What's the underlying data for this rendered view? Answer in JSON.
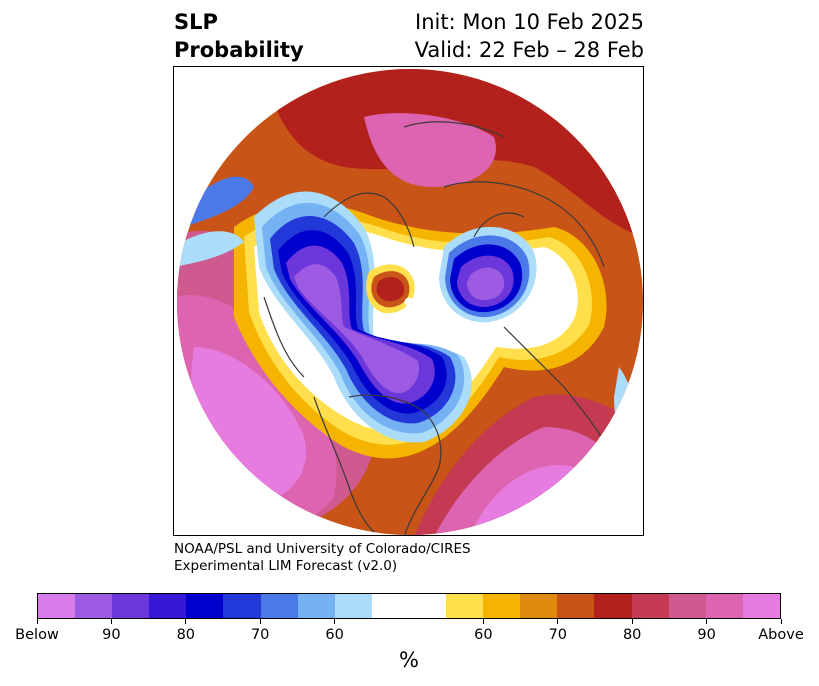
{
  "title": {
    "left_line1": "SLP",
    "left_line2": "Probability",
    "right_line1": "Init: Mon 10 Feb 2025",
    "right_line2": "Valid: 22 Feb – 28 Feb"
  },
  "credit": {
    "line1": "NOAA/PSL and University of Colorado/CIRES",
    "line2": "Experimental LIM Forecast (v2.0)"
  },
  "colorbar": {
    "colors": [
      "#d77ce8",
      "#9c5be2",
      "#6b36da",
      "#3519d6",
      "#0000cc",
      "#2338d9",
      "#4c79e8",
      "#74b2f4",
      "#abdcfa",
      "#ffffff",
      "#ffffff",
      "#ffe04c",
      "#f5b400",
      "#e08a0e",
      "#c95418",
      "#b3211d",
      "#c33a52",
      "#cf5a90",
      "#dd64b0",
      "#e67ce0"
    ],
    "tick_labels": [
      "Below",
      "90",
      "80",
      "70",
      "60",
      "60",
      "70",
      "80",
      "90",
      "Above"
    ],
    "unit": "%"
  },
  "map": {
    "colors": {
      "ocean": "#ffffff",
      "coast": "#3a3a3a",
      "below_core": "#0000cc",
      "below_mid": "#6b36da",
      "below_light": "#9c5be2",
      "above_core": "#b3211d",
      "above_pink": "#dd64b0",
      "above_light": "#e67ce0",
      "gold": "#f5b400"
    }
  }
}
